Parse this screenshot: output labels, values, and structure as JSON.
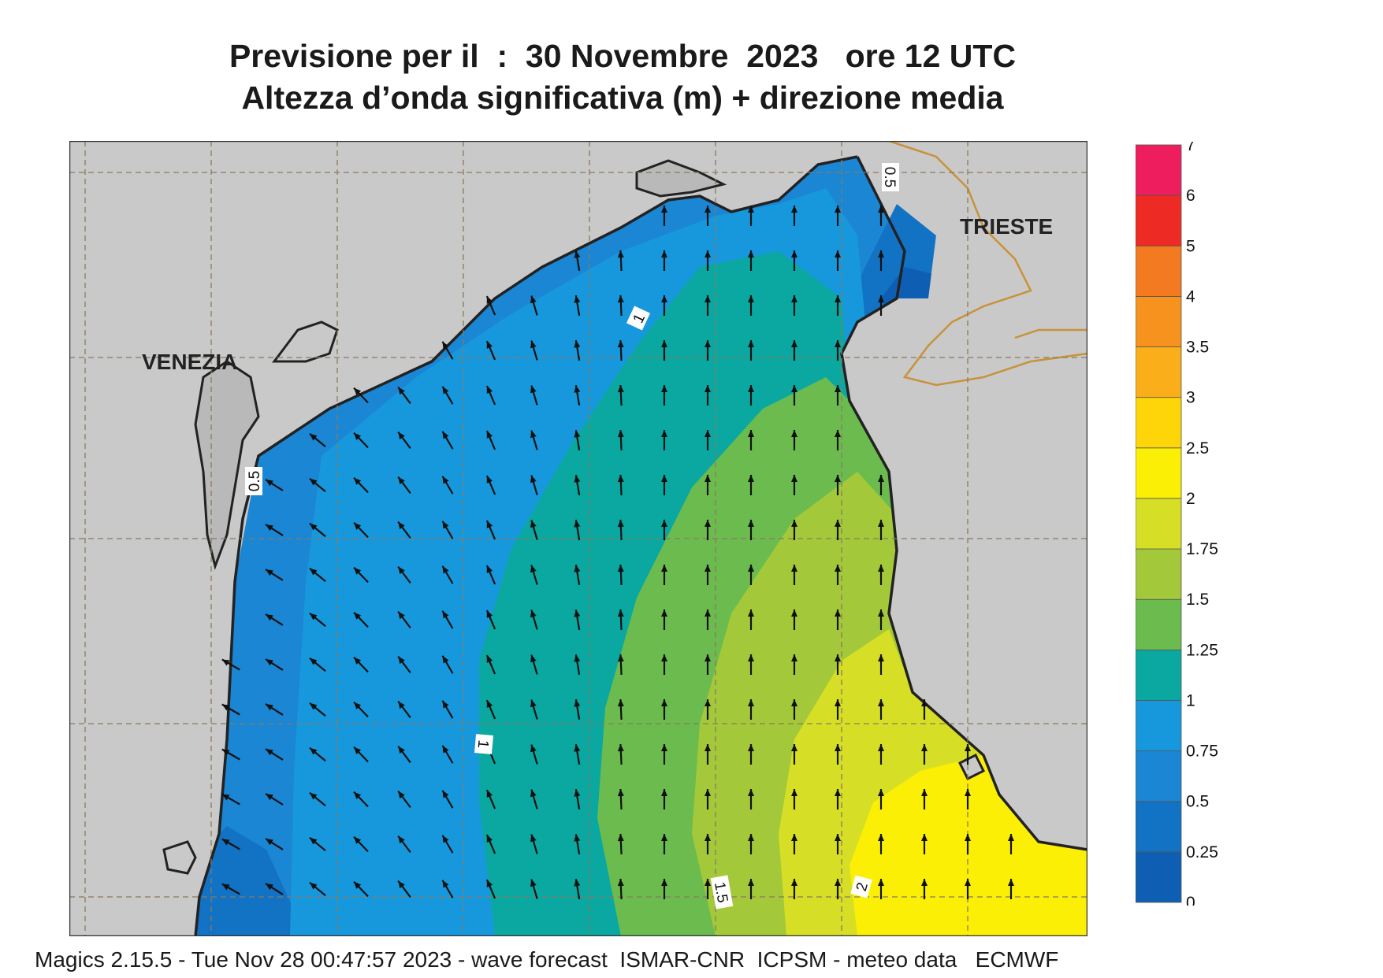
{
  "header": {
    "line1": "Previsione per il  :  30 Novembre  2023   ore 12 UTC",
    "line2": "Altezza d’onda significativa (m) + direzione media"
  },
  "map": {
    "cities": [
      {
        "name": "VENEZIA"
      },
      {
        "name": "TRIESTE"
      }
    ],
    "contour_labels": [
      "0.5",
      "0.5",
      "1",
      "1",
      "1.5",
      "2"
    ],
    "colors": {
      "land": "#c9c9c9",
      "coast": "#222222",
      "border": "#c8923a",
      "grid": "#8a7a60"
    }
  },
  "legend": {
    "ticks": [
      "7",
      "6",
      "5",
      "4",
      "3.5",
      "3",
      "2.5",
      "2",
      "1.75",
      "1.5",
      "1.25",
      "1",
      "0.75",
      "0.5",
      "0.25",
      "0"
    ],
    "bands": [
      {
        "from": "0",
        "to": "0.25",
        "color": "#0e5fb3"
      },
      {
        "from": "0.25",
        "to": "0.5",
        "color": "#1272c4"
      },
      {
        "from": "0.5",
        "to": "0.75",
        "color": "#1a86d4"
      },
      {
        "from": "0.75",
        "to": "1",
        "color": "#1898dc"
      },
      {
        "from": "1",
        "to": "1.25",
        "color": "#0aa8a0"
      },
      {
        "from": "1.25",
        "to": "1.5",
        "color": "#6bbb4f"
      },
      {
        "from": "1.5",
        "to": "1.75",
        "color": "#a3c93a"
      },
      {
        "from": "1.75",
        "to": "2",
        "color": "#d6df25"
      },
      {
        "from": "2",
        "to": "2.5",
        "color": "#fbef05"
      },
      {
        "from": "2.5",
        "to": "3",
        "color": "#fdd508"
      },
      {
        "from": "3",
        "to": "3.5",
        "color": "#f9ae1a"
      },
      {
        "from": "3.5",
        "to": "4",
        "color": "#f7921f"
      },
      {
        "from": "4",
        "to": "5",
        "color": "#f47a22"
      },
      {
        "from": "5",
        "to": "6",
        "color": "#ed2a24"
      },
      {
        "from": "6",
        "to": "7",
        "color": "#ee1d5e"
      }
    ]
  },
  "footer": "Magics 2.15.5 - Tue Nov 28 00:47:57 2023 - wave forecast  ISMAR-CNR  ICPSM - meteo data   ECMWF"
}
